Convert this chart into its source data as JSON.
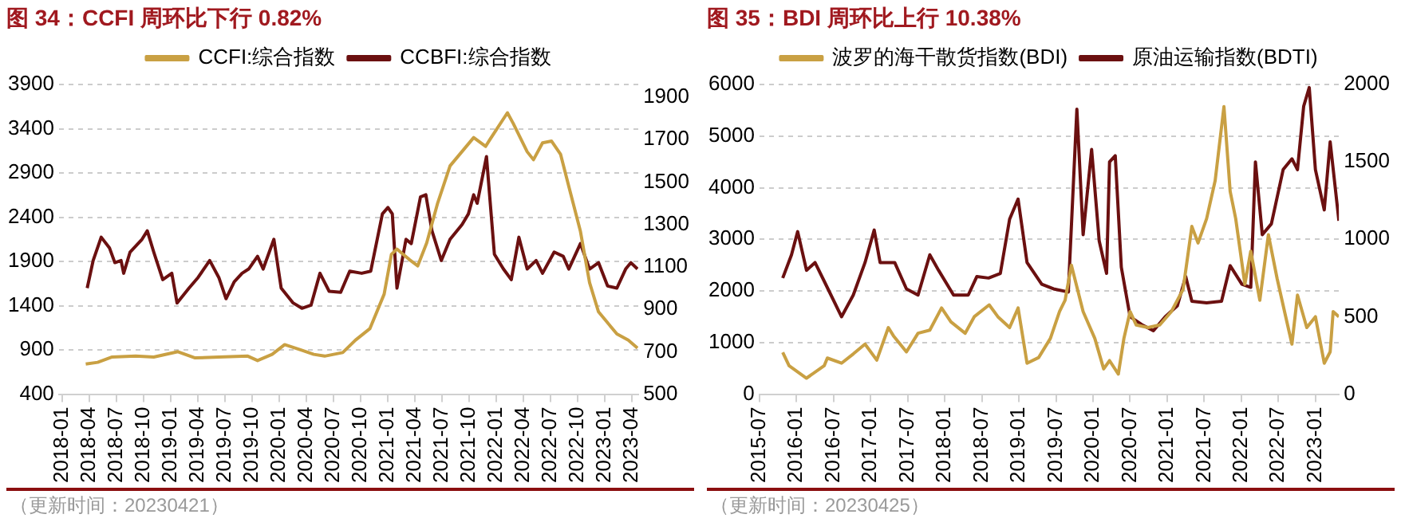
{
  "chart_data": [
    {
      "type": "line",
      "title": "图 34：CCFI 周环比下行 0.82%",
      "xlim": [
        "2017-12-20",
        "2023-04-22"
      ],
      "xticks": [
        "2018-01",
        "2018-04",
        "2018-07",
        "2018-10",
        "2019-01",
        "2019-04",
        "2019-07",
        "2019-10",
        "2020-01",
        "2020-04",
        "2020-07",
        "2020-10",
        "2021-01",
        "2021-04",
        "2021-07",
        "2021-10",
        "2022-01",
        "2022-04",
        "2022-07",
        "2022-10",
        "2023-01",
        "2023-04"
      ],
      "ylim": [
        400,
        3900
      ],
      "yticks": [
        400,
        900,
        1400,
        1900,
        2400,
        2900,
        3400,
        3900
      ],
      "y2lim": [
        500,
        1960
      ],
      "y2ticks": [
        500,
        700,
        900,
        1100,
        1300,
        1500,
        1700,
        1900
      ],
      "grid": "y",
      "legend": "top",
      "annotations": [
        "（更新时间：20230421）"
      ],
      "series": [
        {
          "name": "CCFI:综合指数",
          "color": "#c9a043",
          "x": [
            "2018-03-19",
            "2018-04-28",
            "2018-06-16",
            "2018-09-04",
            "2018-11-04",
            "2019-01-25",
            "2019-03-22",
            "2019-06-10",
            "2019-09-16",
            "2019-10-19",
            "2019-12-07",
            "2020-01-19",
            "2020-03-13",
            "2020-04-25",
            "2020-06-01",
            "2020-08-01",
            "2020-09-13",
            "2020-11-01",
            "2020-12-19",
            "2021-01-13",
            "2021-02-01",
            "2021-03-13",
            "2021-04-10",
            "2021-05-10",
            "2021-06-16",
            "2021-07-28",
            "2021-10-16",
            "2021-11-25",
            "2021-12-10",
            "2022-02-07",
            "2022-02-25",
            "2022-04-13",
            "2022-05-04",
            "2022-06-04",
            "2022-07-04",
            "2022-08-04",
            "2022-09-01",
            "2022-10-10",
            "2022-11-10",
            "2022-12-10",
            "2023-02-10",
            "2023-03-19",
            "2023-04-19"
          ],
          "values": [
            740,
            760,
            820,
            830,
            820,
            880,
            810,
            820,
            830,
            780,
            850,
            960,
            900,
            850,
            830,
            870,
            1010,
            1140,
            1530,
            1980,
            2040,
            1920,
            1850,
            2110,
            2560,
            2980,
            3300,
            3200,
            3280,
            3580,
            3460,
            3140,
            3050,
            3240,
            3260,
            3110,
            2750,
            2240,
            1660,
            1330,
            1080,
            1010,
            920
          ]
        },
        {
          "name": "CCBFI:综合指数",
          "color": "#6b1010",
          "axis": "y2",
          "x": [
            "2018-03-24",
            "2018-04-13",
            "2018-05-10",
            "2018-06-07",
            "2018-06-25",
            "2018-07-16",
            "2018-07-25",
            "2018-08-16",
            "2018-09-25",
            "2018-10-13",
            "2018-11-04",
            "2018-12-04",
            "2019-01-04",
            "2019-01-22",
            "2019-03-01",
            "2019-04-01",
            "2019-05-10",
            "2019-06-10",
            "2019-07-04",
            "2019-08-01",
            "2019-08-28",
            "2019-09-19",
            "2019-10-19",
            "2019-11-07",
            "2019-12-13",
            "2020-01-07",
            "2020-02-16",
            "2020-03-16",
            "2020-04-16",
            "2020-05-16",
            "2020-06-16",
            "2020-07-25",
            "2020-08-25",
            "2020-10-04",
            "2020-11-04",
            "2020-12-13",
            "2021-01-01",
            "2021-01-16",
            "2021-02-01",
            "2021-03-01",
            "2021-03-19",
            "2021-04-19",
            "2021-05-07",
            "2021-05-28",
            "2021-06-28",
            "2021-07-28",
            "2021-09-07",
            "2021-09-28",
            "2021-10-16",
            "2021-10-28",
            "2021-11-28",
            "2021-12-25",
            "2022-01-25",
            "2022-02-19",
            "2022-03-16",
            "2022-04-13",
            "2022-05-13",
            "2022-06-04",
            "2022-07-13",
            "2022-08-13",
            "2022-09-01",
            "2022-10-10",
            "2022-11-10",
            "2022-12-10",
            "2023-01-10",
            "2023-02-10",
            "2023-03-10",
            "2023-03-28",
            "2023-04-19"
          ],
          "values": [
            1000,
            1130,
            1240,
            1190,
            1120,
            1130,
            1070,
            1170,
            1230,
            1270,
            1170,
            1040,
            1070,
            930,
            1000,
            1050,
            1130,
            1050,
            950,
            1030,
            1070,
            1090,
            1150,
            1090,
            1230,
            1000,
            930,
            905,
            920,
            1070,
            985,
            980,
            1080,
            1070,
            1080,
            1350,
            1380,
            1350,
            1000,
            1230,
            1210,
            1430,
            1440,
            1270,
            1130,
            1230,
            1300,
            1350,
            1440,
            1400,
            1620,
            1160,
            1090,
            1040,
            1240,
            1090,
            1130,
            1070,
            1170,
            1150,
            1090,
            1210,
            1090,
            1120,
            1010,
            1000,
            1090,
            1120,
            1090
          ]
        }
      ]
    },
    {
      "type": "line",
      "title": "图 35：BDI 周环比上行 10.38%",
      "xlim": [
        "2015-07-01",
        "2023-04-25"
      ],
      "xticks": [
        "2015-07",
        "2016-01",
        "2016-07",
        "2017-01",
        "2017-07",
        "2018-01",
        "2018-07",
        "2019-01",
        "2019-07",
        "2020-01",
        "2020-07",
        "2021-01",
        "2021-07",
        "2022-01",
        "2022-07",
        "2023-01"
      ],
      "ylim": [
        0,
        6000
      ],
      "yticks": [
        0,
        1000,
        2000,
        3000,
        4000,
        5000,
        6000
      ],
      "y2lim": [
        0,
        2000
      ],
      "y2ticks": [
        0,
        500,
        1000,
        1500,
        2000
      ],
      "grid": "y",
      "legend": "top",
      "annotations": [
        "（更新时间：20230425）"
      ],
      "series": [
        {
          "name": "波罗的海干散货指数(BDI)",
          "color": "#c9a043",
          "x": [
            "2015-10-25",
            "2015-11-25",
            "2016-02-19",
            "2016-05-16",
            "2016-06-01",
            "2016-08-10",
            "2016-10-07",
            "2016-12-04",
            "2017-02-01",
            "2017-03-28",
            "2017-04-22",
            "2017-06-25",
            "2017-08-22",
            "2017-10-19",
            "2017-12-16",
            "2018-02-01",
            "2018-04-10",
            "2018-05-25",
            "2018-08-07",
            "2018-09-19",
            "2018-11-16",
            "2018-12-28",
            "2019-02-10",
            "2019-04-07",
            "2019-06-04",
            "2019-07-19",
            "2019-08-16",
            "2019-09-16",
            "2019-11-13",
            "2020-01-10",
            "2020-02-22",
            "2020-03-22",
            "2020-05-04",
            "2020-06-01",
            "2020-07-01",
            "2020-08-01",
            "2020-09-28",
            "2020-11-25",
            "2021-01-22",
            "2021-03-19",
            "2021-05-01",
            "2021-06-01",
            "2021-07-13",
            "2021-08-25",
            "2021-10-07",
            "2021-11-07",
            "2021-12-04",
            "2022-01-19",
            "2022-02-16",
            "2022-04-01",
            "2022-05-13",
            "2022-06-25",
            "2022-08-07",
            "2022-09-07",
            "2022-10-04",
            "2022-11-19",
            "2023-01-01",
            "2023-02-13",
            "2023-03-13",
            "2023-03-28",
            "2023-04-25"
          ],
          "values": [
            810,
            550,
            310,
            550,
            700,
            600,
            780,
            970,
            660,
            1290,
            1130,
            820,
            1180,
            1240,
            1670,
            1400,
            1180,
            1500,
            1730,
            1500,
            1290,
            1670,
            600,
            710,
            1080,
            1600,
            1820,
            2500,
            1600,
            1080,
            490,
            650,
            390,
            1080,
            1600,
            1340,
            1290,
            1340,
            1600,
            2030,
            3250,
            2930,
            3400,
            4140,
            5570,
            3930,
            3400,
            2130,
            2770,
            1820,
            3090,
            2240,
            1500,
            970,
            1920,
            1290,
            1500,
            600,
            820,
            1600,
            1500
          ]
        },
        {
          "name": "原油运输指数(BDTI)",
          "color": "#6b1010",
          "axis": "y2",
          "x": [
            "2015-10-25",
            "2015-12-07",
            "2016-01-07",
            "2016-02-19",
            "2016-04-01",
            "2016-05-16",
            "2016-08-10",
            "2016-10-07",
            "2016-12-04",
            "2017-01-19",
            "2017-02-16",
            "2017-04-28",
            "2017-06-25",
            "2017-08-22",
            "2017-10-19",
            "2017-12-01",
            "2018-02-13",
            "2018-04-25",
            "2018-06-07",
            "2018-08-04",
            "2018-10-01",
            "2018-11-16",
            "2018-12-28",
            "2019-02-10",
            "2019-04-22",
            "2019-06-19",
            "2019-09-01",
            "2019-10-13",
            "2019-11-13",
            "2019-12-25",
            "2020-02-01",
            "2020-03-07",
            "2020-03-22",
            "2020-04-19",
            "2020-05-19",
            "2020-07-01",
            "2020-08-28",
            "2020-10-25",
            "2020-12-22",
            "2021-02-19",
            "2021-04-01",
            "2021-05-01",
            "2021-07-13",
            "2021-09-25",
            "2021-11-07",
            "2022-01-04",
            "2022-02-16",
            "2022-03-10",
            "2022-04-13",
            "2022-05-28",
            "2022-07-25",
            "2022-09-07",
            "2022-10-04",
            "2022-11-04",
            "2022-12-01",
            "2023-01-01",
            "2023-02-13",
            "2023-03-13",
            "2023-04-25"
          ],
          "values": [
            750,
            900,
            1050,
            800,
            850,
            730,
            500,
            640,
            850,
            1060,
            850,
            850,
            680,
            640,
            900,
            800,
            640,
            640,
            760,
            750,
            780,
            1130,
            1260,
            850,
            710,
            680,
            660,
            1840,
            1030,
            1580,
            990,
            780,
            1500,
            1540,
            820,
            500,
            450,
            410,
            500,
            570,
            760,
            600,
            590,
            600,
            830,
            710,
            690,
            1500,
            1030,
            1100,
            1450,
            1520,
            1450,
            1860,
            1980,
            1450,
            1190,
            1630,
            1120
          ]
        }
      ]
    }
  ]
}
